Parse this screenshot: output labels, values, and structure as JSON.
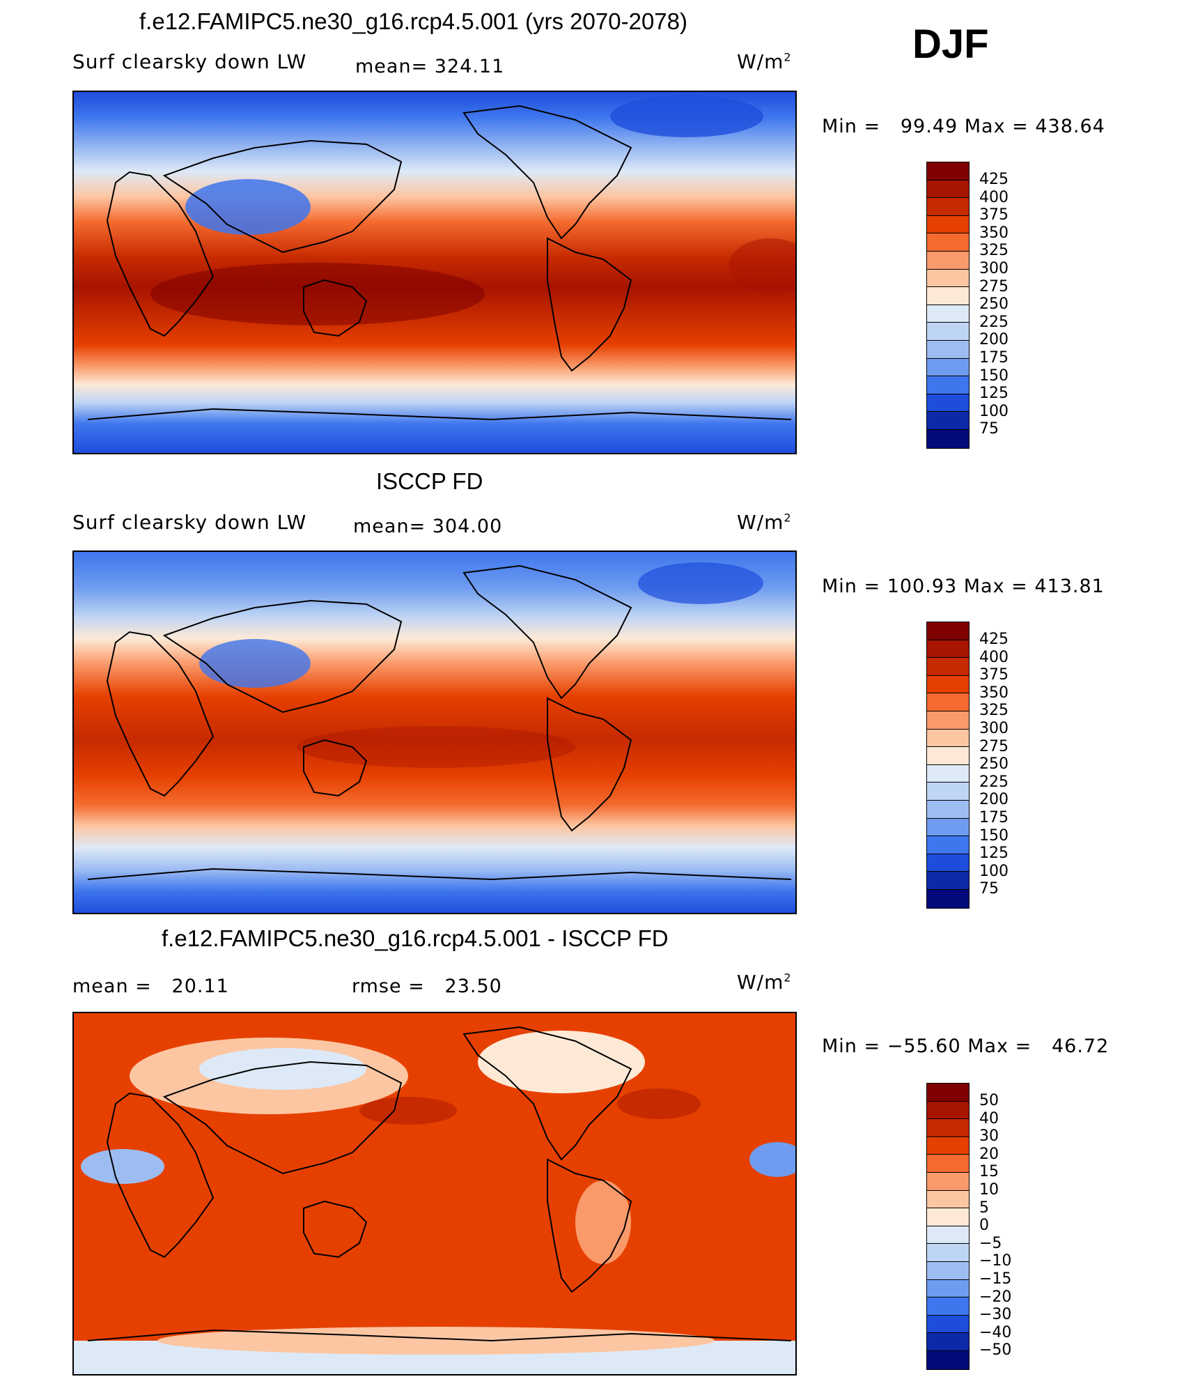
{
  "season": "DJF",
  "units_label": "W/m",
  "units_sup": "2",
  "panels": [
    {
      "title": "f.e12.FAMIPC5.ne30_g16.rcp4.5.001 (yrs 2070-2078)",
      "left_label": "Surf clearsky down LW",
      "stat1": "mean= 324.11",
      "min_max": "Min =   99.49 Max = 438.64",
      "colorbar_levels": [
        "425",
        "400",
        "375",
        "350",
        "325",
        "300",
        "275",
        "250",
        "225",
        "200",
        "175",
        "150",
        "125",
        "100",
        "75"
      ]
    },
    {
      "title": "ISCCP FD",
      "left_label": "Surf clearsky down LW",
      "stat1": "mean= 304.00",
      "min_max": "Min = 100.93 Max = 413.81",
      "colorbar_levels": [
        "425",
        "400",
        "375",
        "350",
        "325",
        "300",
        "275",
        "250",
        "225",
        "200",
        "175",
        "150",
        "125",
        "100",
        "75"
      ]
    },
    {
      "title": "f.e12.FAMIPC5.ne30_g16.rcp4.5.001 - ISCCP FD",
      "left_label": "mean =   20.11",
      "stat1": "rmse =   23.50",
      "min_max": "Min = −55.60 Max =   46.72",
      "colorbar_levels": [
        "50",
        "40",
        "30",
        "20",
        "15",
        "10",
        "5",
        "0",
        "−5",
        "−10",
        "−15",
        "−20",
        "−30",
        "−40",
        "−50"
      ]
    }
  ],
  "colorbar_colors": [
    "#7f0000",
    "#a71400",
    "#c62a00",
    "#e64000",
    "#f46a2f",
    "#fa9a6a",
    "#fcc6a2",
    "#fde9d6",
    "#dde9f7",
    "#bfd5f4",
    "#9dbcf2",
    "#6f9cf0",
    "#3e76ee",
    "#1e4ddb",
    "#0c2aa8",
    "#02097a"
  ]
}
